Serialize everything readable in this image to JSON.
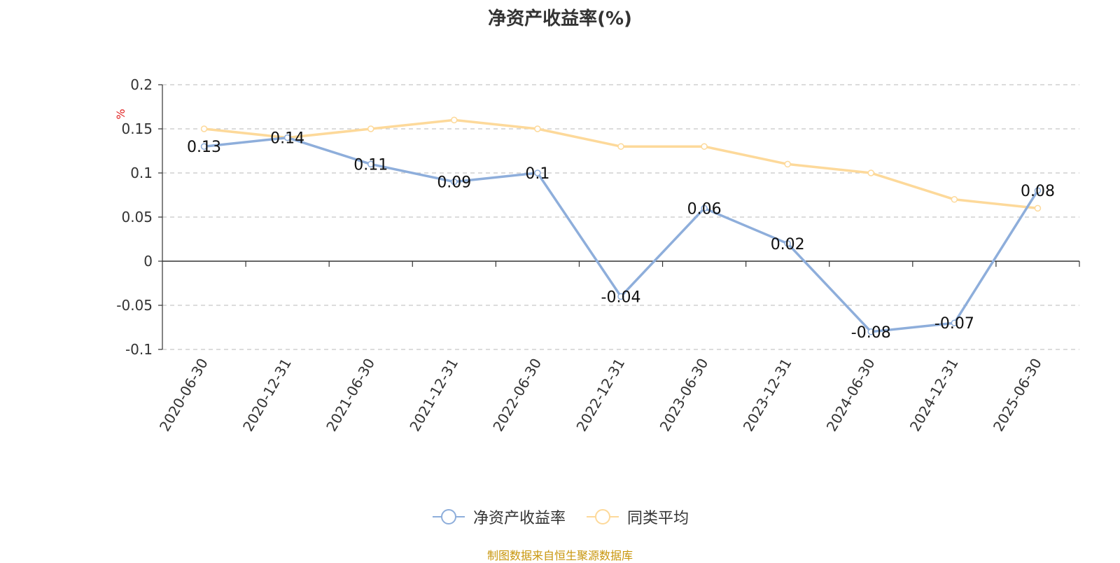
{
  "chart_data": {
    "type": "line",
    "title": "净资产收益率(%)",
    "ylabel": "%",
    "x": [
      "2020-06-30",
      "2020-12-31",
      "2021-06-30",
      "2021-12-31",
      "2022-06-30",
      "2022-12-31",
      "2023-06-30",
      "2023-12-31",
      "2024-06-30",
      "2024-12-31",
      "2025-06-30"
    ],
    "ylim": [
      -0.1,
      0.2
    ],
    "yticks": [
      "0.2",
      "0.15",
      "0.1",
      "0.05",
      "0",
      "-0.05",
      "-0.1"
    ],
    "grid": true,
    "legend_position": "bottom",
    "series": [
      {
        "name": "净资产收益率",
        "color": "#8eaedb",
        "values": [
          0.13,
          0.14,
          0.11,
          0.09,
          0.1,
          -0.04,
          0.06,
          0.02,
          -0.08,
          -0.07,
          0.08
        ],
        "labels": [
          "0.13",
          "0.14",
          "0.11",
          "0.09",
          "0.1",
          "-0.04",
          "0.06",
          "0.02",
          "-0.08",
          "-0.07",
          "0.08"
        ]
      },
      {
        "name": "同类平均",
        "color": "#fdd99a",
        "values": [
          0.15,
          0.14,
          0.15,
          0.16,
          0.15,
          0.13,
          0.13,
          0.11,
          0.1,
          0.07,
          0.06
        ]
      }
    ],
    "source": "制图数据来自恒生聚源数据库"
  }
}
